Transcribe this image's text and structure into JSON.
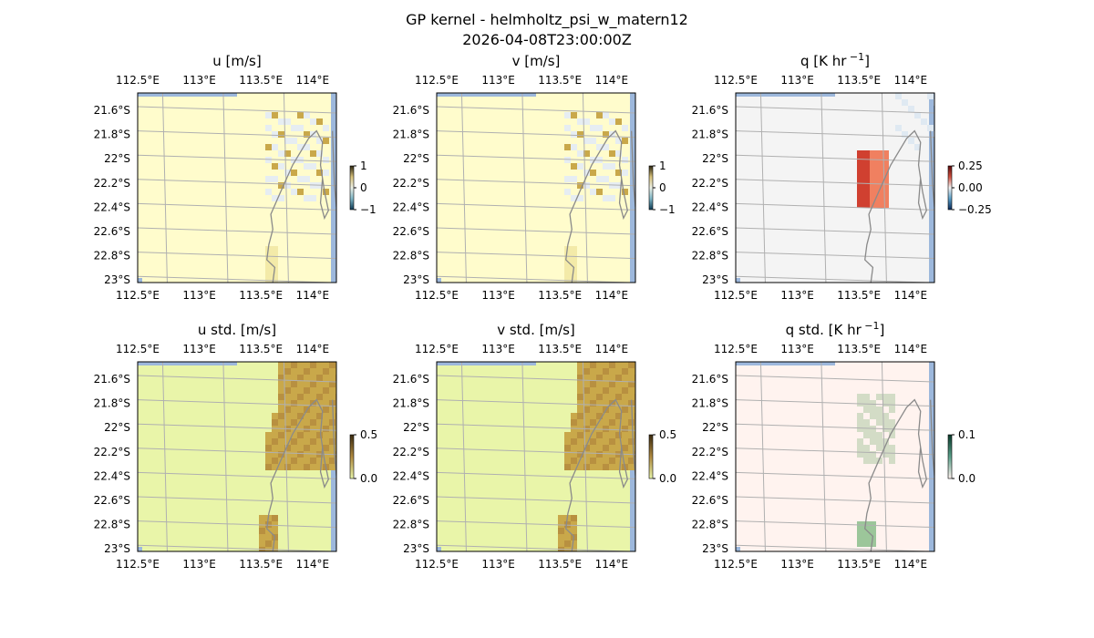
{
  "figure": {
    "title": "GP kernel - helmholtz_psi_w_matern12",
    "timestamp": "2026-04-08T23:00:00Z"
  },
  "chart_data": [
    {
      "type": "heatmap",
      "title": "u [m/s]",
      "colors": {
        "background": "#fffccc",
        "field": "#e6edf2",
        "accent": "#c9a84a"
      },
      "colorbar": {
        "ticks": [
          "1",
          "0",
          "−1"
        ],
        "colors": [
          "#2a2410",
          "#d8c27a",
          "#eef2e8",
          "#7fb7c7",
          "#0e3b55"
        ]
      },
      "x_ticks": [
        "112.5°E",
        "113°E",
        "113.5°E",
        "114°E"
      ],
      "y_ticks": [
        "21.6°S",
        "21.8°S",
        "22°S",
        "22.2°S",
        "22.4°S",
        "22.6°S",
        "22.8°S",
        "23°S"
      ],
      "xlim": [
        112.5,
        114.3
      ],
      "ylim": [
        -23.0,
        -21.5
      ],
      "grid": true
    },
    {
      "type": "heatmap",
      "title": "v [m/s]",
      "colors": {
        "background": "#fffccc",
        "field": "#e6edf2",
        "accent": "#c9a84a"
      },
      "colorbar": {
        "ticks": [
          "1",
          "0",
          "−1"
        ],
        "colors": [
          "#2a2410",
          "#d8c27a",
          "#eef2e8",
          "#7fb7c7",
          "#0e3b55"
        ]
      },
      "x_ticks": [
        "112.5°E",
        "113°E",
        "113.5°E",
        "114°E"
      ],
      "y_ticks": [
        "21.6°S",
        "21.8°S",
        "22°S",
        "22.2°S",
        "22.4°S",
        "22.6°S",
        "22.8°S",
        "23°S"
      ],
      "xlim": [
        112.5,
        114.3
      ],
      "ylim": [
        -23.0,
        -21.5
      ],
      "grid": true
    },
    {
      "type": "heatmap",
      "title": "q [K hr",
      "title_exp": "−1",
      "title_end": "]",
      "colors": {
        "background": "#f4f4f4",
        "field": "#f08060",
        "accent": "#d04030"
      },
      "colorbar": {
        "ticks": [
          "0.25",
          "0.00",
          "−0.25"
        ],
        "colors": [
          "#5a0a0a",
          "#d05040",
          "#f4f4f4",
          "#5a9fc8",
          "#0a2a5a"
        ]
      },
      "x_ticks": [
        "112.5°E",
        "113°E",
        "113.5°E",
        "114°E"
      ],
      "y_ticks": [
        "21.6°S",
        "21.8°S",
        "22°S",
        "22.2°S",
        "22.4°S",
        "22.6°S",
        "22.8°S",
        "23°S"
      ],
      "xlim": [
        112.5,
        114.3
      ],
      "ylim": [
        -23.0,
        -21.5
      ],
      "grid": true
    },
    {
      "type": "heatmap",
      "title": "u std. [m/s]",
      "colors": {
        "background": "#e9f5a9",
        "field": "#c9a84a",
        "accent": "#b89040"
      },
      "colorbar": {
        "ticks": [
          "0.5",
          "0.0"
        ],
        "colors": [
          "#3a2a10",
          "#b08a40",
          "#e9f5a9"
        ]
      },
      "x_ticks": [
        "112.5°E",
        "113°E",
        "113.5°E",
        "114°E"
      ],
      "y_ticks": [
        "21.6°S",
        "21.8°S",
        "22°S",
        "22.2°S",
        "22.4°S",
        "22.6°S",
        "22.8°S",
        "23°S"
      ],
      "xlim": [
        112.5,
        114.3
      ],
      "ylim": [
        -23.0,
        -21.5
      ],
      "grid": true
    },
    {
      "type": "heatmap",
      "title": "v std. [m/s]",
      "colors": {
        "background": "#e9f5a9",
        "field": "#c9a84a",
        "accent": "#b89040"
      },
      "colorbar": {
        "ticks": [
          "0.5",
          "0.0"
        ],
        "colors": [
          "#3a2a10",
          "#b08a40",
          "#e9f5a9"
        ]
      },
      "x_ticks": [
        "112.5°E",
        "113°E",
        "113.5°E",
        "114°E"
      ],
      "y_ticks": [
        "21.6°S",
        "21.8°S",
        "22°S",
        "22.2°S",
        "22.4°S",
        "22.6°S",
        "22.8°S",
        "23°S"
      ],
      "xlim": [
        112.5,
        114.3
      ],
      "ylim": [
        -23.0,
        -21.5
      ],
      "grid": true
    },
    {
      "type": "heatmap",
      "title": "q std. [K hr",
      "title_exp": "−1",
      "title_end": "]",
      "colors": {
        "background": "#fff3ef",
        "field": "#d3dcc6",
        "accent": "#9cc69a"
      },
      "colorbar": {
        "ticks": [
          "0.1",
          "0.0"
        ],
        "colors": [
          "#0a3a2a",
          "#5aa08a",
          "#fff3ef"
        ]
      },
      "x_ticks": [
        "112.5°E",
        "113°E",
        "113.5°E",
        "114°E"
      ],
      "y_ticks": [
        "21.6°S",
        "21.8°S",
        "22°S",
        "22.2°S",
        "22.4°S",
        "22.6°S",
        "22.8°S",
        "23°S"
      ],
      "xlim": [
        112.5,
        114.3
      ],
      "ylim": [
        -23.0,
        -21.5
      ],
      "grid": true
    }
  ]
}
